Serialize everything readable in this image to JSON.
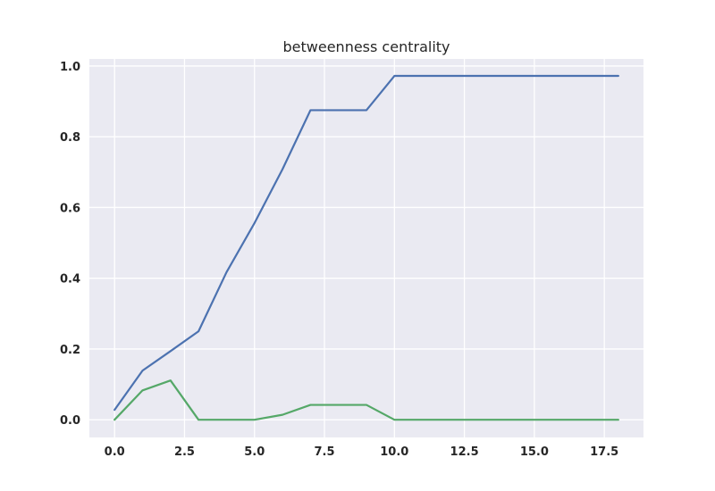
{
  "chart_data": {
    "type": "line",
    "title": "betweenness centrality",
    "xlabel": "",
    "ylabel": "",
    "xlim": [
      -0.9,
      18.9
    ],
    "ylim": [
      -0.05,
      1.02
    ],
    "x_ticks": [
      0.0,
      2.5,
      5.0,
      7.5,
      10.0,
      12.5,
      15.0,
      17.5
    ],
    "x_tick_labels": [
      "0.0",
      "2.5",
      "5.0",
      "7.5",
      "10.0",
      "12.5",
      "15.0",
      "17.5"
    ],
    "y_ticks": [
      0.0,
      0.2,
      0.4,
      0.6,
      0.8,
      1.0
    ],
    "y_tick_labels": [
      "0.0",
      "0.2",
      "0.4",
      "0.6",
      "0.8",
      "1.0"
    ],
    "grid": true,
    "background": "#eaeaf2",
    "series": [
      {
        "color": "#4c72b0",
        "x": [
          0,
          1,
          2,
          3,
          4,
          5,
          6,
          7,
          8,
          9,
          10,
          11,
          12,
          13,
          14,
          15,
          16,
          17,
          18
        ],
        "y": [
          0.028,
          0.139,
          0.194,
          0.25,
          0.417,
          0.556,
          0.708,
          0.875,
          0.875,
          0.875,
          0.972,
          0.972,
          0.972,
          0.972,
          0.972,
          0.972,
          0.972,
          0.972,
          0.972
        ]
      },
      {
        "color": "#55a868",
        "x": [
          0,
          1,
          2,
          3,
          4,
          5,
          6,
          7,
          8,
          9,
          10,
          11,
          12,
          13,
          14,
          15,
          16,
          17,
          18
        ],
        "y": [
          0.0,
          0.083,
          0.111,
          0.0,
          0.0,
          0.0,
          0.014,
          0.042,
          0.042,
          0.042,
          0.0,
          0.0,
          0.0,
          0.0,
          0.0,
          0.0,
          0.0,
          0.0,
          0.0
        ]
      }
    ]
  }
}
